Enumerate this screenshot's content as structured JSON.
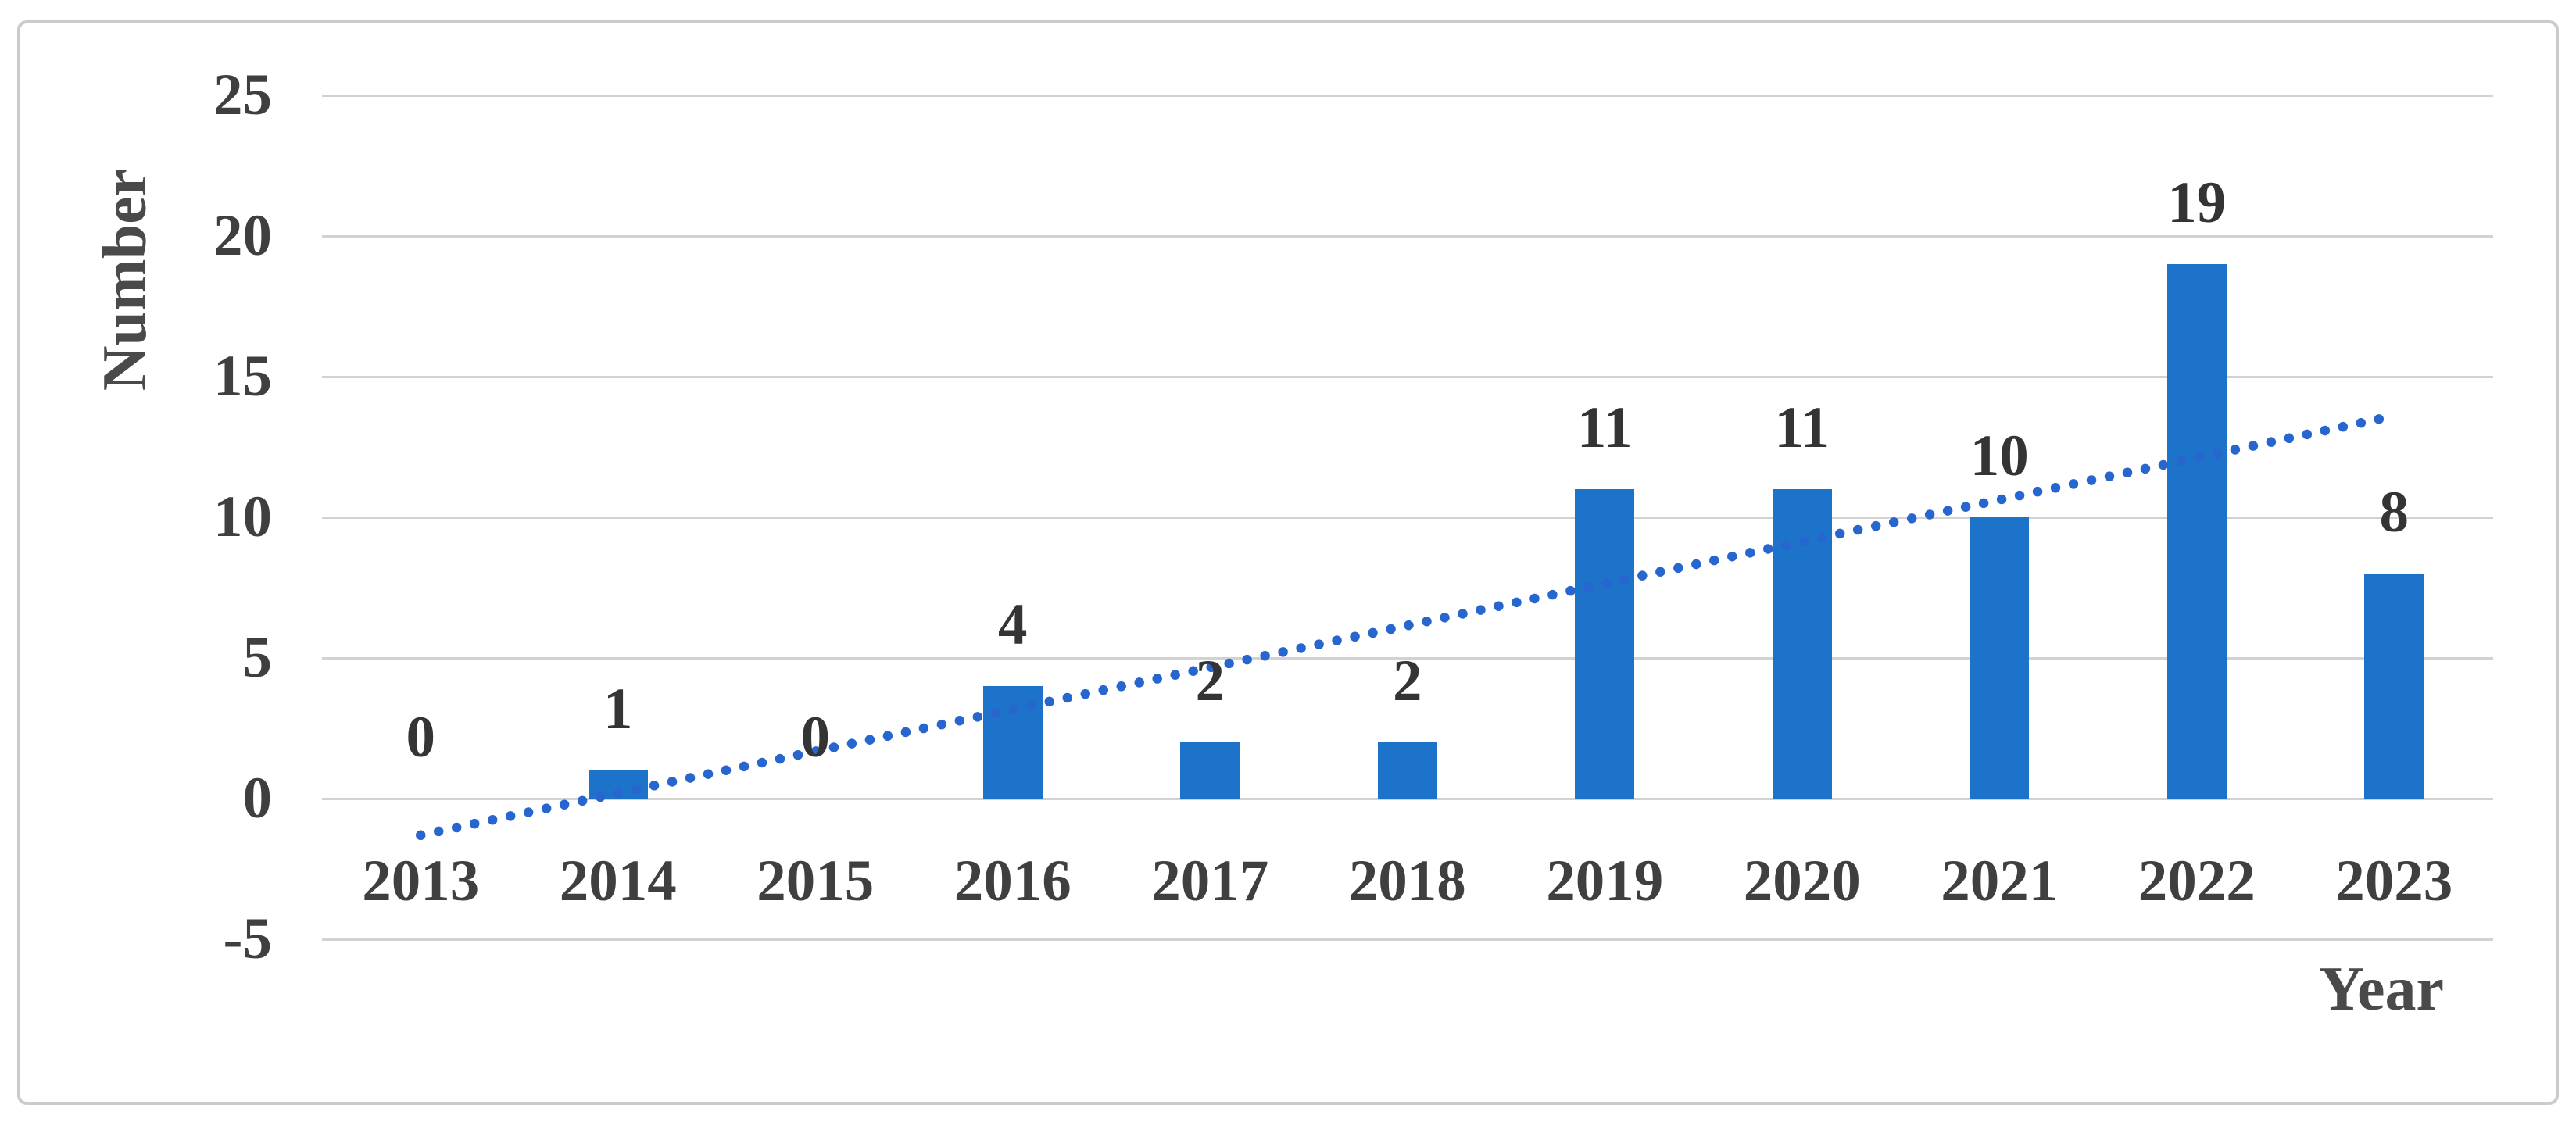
{
  "chart_data": {
    "type": "bar",
    "title": "",
    "categories": [
      "2013",
      "2014",
      "2015",
      "2016",
      "2017",
      "2018",
      "2019",
      "2020",
      "2021",
      "2022",
      "2023"
    ],
    "values": [
      0,
      1,
      0,
      4,
      2,
      2,
      11,
      11,
      10,
      19,
      8
    ],
    "data_labels": [
      "0",
      "1",
      "0",
      "4",
      "2",
      "2",
      "11",
      "11",
      "10",
      "19",
      "8"
    ],
    "xlabel": "Year",
    "ylabel": "Number",
    "ylim": [
      -5,
      25
    ],
    "ytick_values": [
      25,
      20,
      15,
      10,
      5,
      0,
      -5
    ],
    "ytick_labels": [
      "25",
      "20",
      "15",
      "10",
      "5",
      "0",
      "-5"
    ],
    "grid": true,
    "legend_position": "none",
    "trendline": {
      "type": "linear",
      "style": "dotted",
      "start": {
        "index": 0,
        "value": -1.3
      },
      "end": {
        "index": 9.93,
        "value": 13.5
      }
    },
    "colors": {
      "bar": "#1d73c9",
      "trendline": "#2766ce",
      "gridline": "#d2d2d2",
      "tick_text": "#3f3f3f",
      "data_label_text": "#343434",
      "axis_title_text": "#4a4a4a",
      "frame_border": "#cbcbcb",
      "background": "#ffffff"
    }
  }
}
